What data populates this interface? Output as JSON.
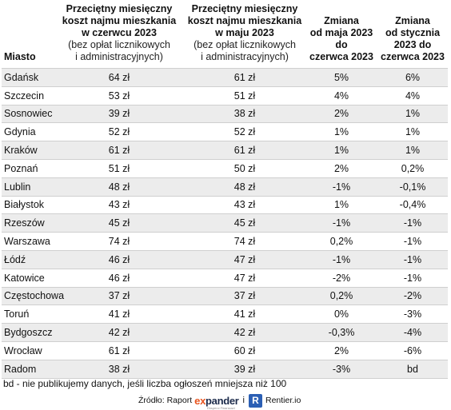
{
  "headers": {
    "city": "Miasto",
    "june": {
      "title": [
        "Przeciętny miesięczny",
        "koszt najmu mieszkania",
        "w czerwcu 2023"
      ],
      "note": [
        "(bez opłat licznikowych",
        "i administracyjnych)"
      ]
    },
    "may": {
      "title": [
        "Przeciętny miesięczny",
        "koszt najmu mieszkania",
        "w maju 2023"
      ],
      "note": [
        "(bez opłat licznikowych",
        "i administracyjnych)"
      ]
    },
    "change_may": [
      "Zmiana",
      "od maja 2023",
      "do",
      "czerwca 2023"
    ],
    "change_jan": [
      "Zmiana",
      "od stycznia",
      "2023 do",
      "czerwca 2023"
    ]
  },
  "rows": [
    {
      "city": "Gdańsk",
      "june": "64 zł",
      "may": "61 zł",
      "chg_may": "5%",
      "chg_jan": "6%"
    },
    {
      "city": "Szczecin",
      "june": "53 zł",
      "may": "51 zł",
      "chg_may": "4%",
      "chg_jan": "4%"
    },
    {
      "city": "Sosnowiec",
      "june": "39 zł",
      "may": "38 zł",
      "chg_may": "2%",
      "chg_jan": "1%"
    },
    {
      "city": "Gdynia",
      "june": "52 zł",
      "may": "52 zł",
      "chg_may": "1%",
      "chg_jan": "1%"
    },
    {
      "city": "Kraków",
      "june": "61 zł",
      "may": "61 zł",
      "chg_may": "1%",
      "chg_jan": "1%"
    },
    {
      "city": "Poznań",
      "june": "51 zł",
      "may": "50 zł",
      "chg_may": "2%",
      "chg_jan": "0,2%"
    },
    {
      "city": "Lublin",
      "june": "48 zł",
      "may": "48 zł",
      "chg_may": "-1%",
      "chg_jan": "-0,1%"
    },
    {
      "city": "Białystok",
      "june": "43 zł",
      "may": "43 zł",
      "chg_may": "1%",
      "chg_jan": "-0,4%"
    },
    {
      "city": "Rzeszów",
      "june": "45 zł",
      "may": "45 zł",
      "chg_may": "-1%",
      "chg_jan": "-1%"
    },
    {
      "city": "Warszawa",
      "june": "74 zł",
      "may": "74 zł",
      "chg_may": "0,2%",
      "chg_jan": "-1%"
    },
    {
      "city": "Łódź",
      "june": "46 zł",
      "may": "47 zł",
      "chg_may": "-1%",
      "chg_jan": "-1%"
    },
    {
      "city": "Katowice",
      "june": "46 zł",
      "may": "47 zł",
      "chg_may": "-2%",
      "chg_jan": "-1%"
    },
    {
      "city": "Częstochowa",
      "june": "37 zł",
      "may": "37 zł",
      "chg_may": "0,2%",
      "chg_jan": "-2%"
    },
    {
      "city": "Toruń",
      "june": "41 zł",
      "may": "41 zł",
      "chg_may": "0%",
      "chg_jan": "-3%"
    },
    {
      "city": "Bydgoszcz",
      "june": "42 zł",
      "may": "42 zł",
      "chg_may": "-0,3%",
      "chg_jan": "-4%"
    },
    {
      "city": "Wrocław",
      "june": "61 zł",
      "may": "60 zł",
      "chg_may": "2%",
      "chg_jan": "-6%"
    },
    {
      "city": "Radom",
      "june": "38 zł",
      "may": "39 zł",
      "chg_may": "-3%",
      "chg_jan": "bd"
    }
  ],
  "footnote": "bd - nie publikujemy danych, jeśli liczba ogłoszeń mniejsza niż 100",
  "source": {
    "label": "Źródło: Raport",
    "logo_e": "e",
    "logo_x": "x",
    "logo_rest": "pander",
    "logo_tagline": "Eksperci Finansowi",
    "separator": "i",
    "r_icon": "R",
    "rentier": "Rentier.io"
  },
  "colors": {
    "stripe": "#ececec",
    "expander_orange": "#e8541e",
    "expander_navy": "#1b2a4a",
    "rentier_blue": "#2b5fb4"
  }
}
